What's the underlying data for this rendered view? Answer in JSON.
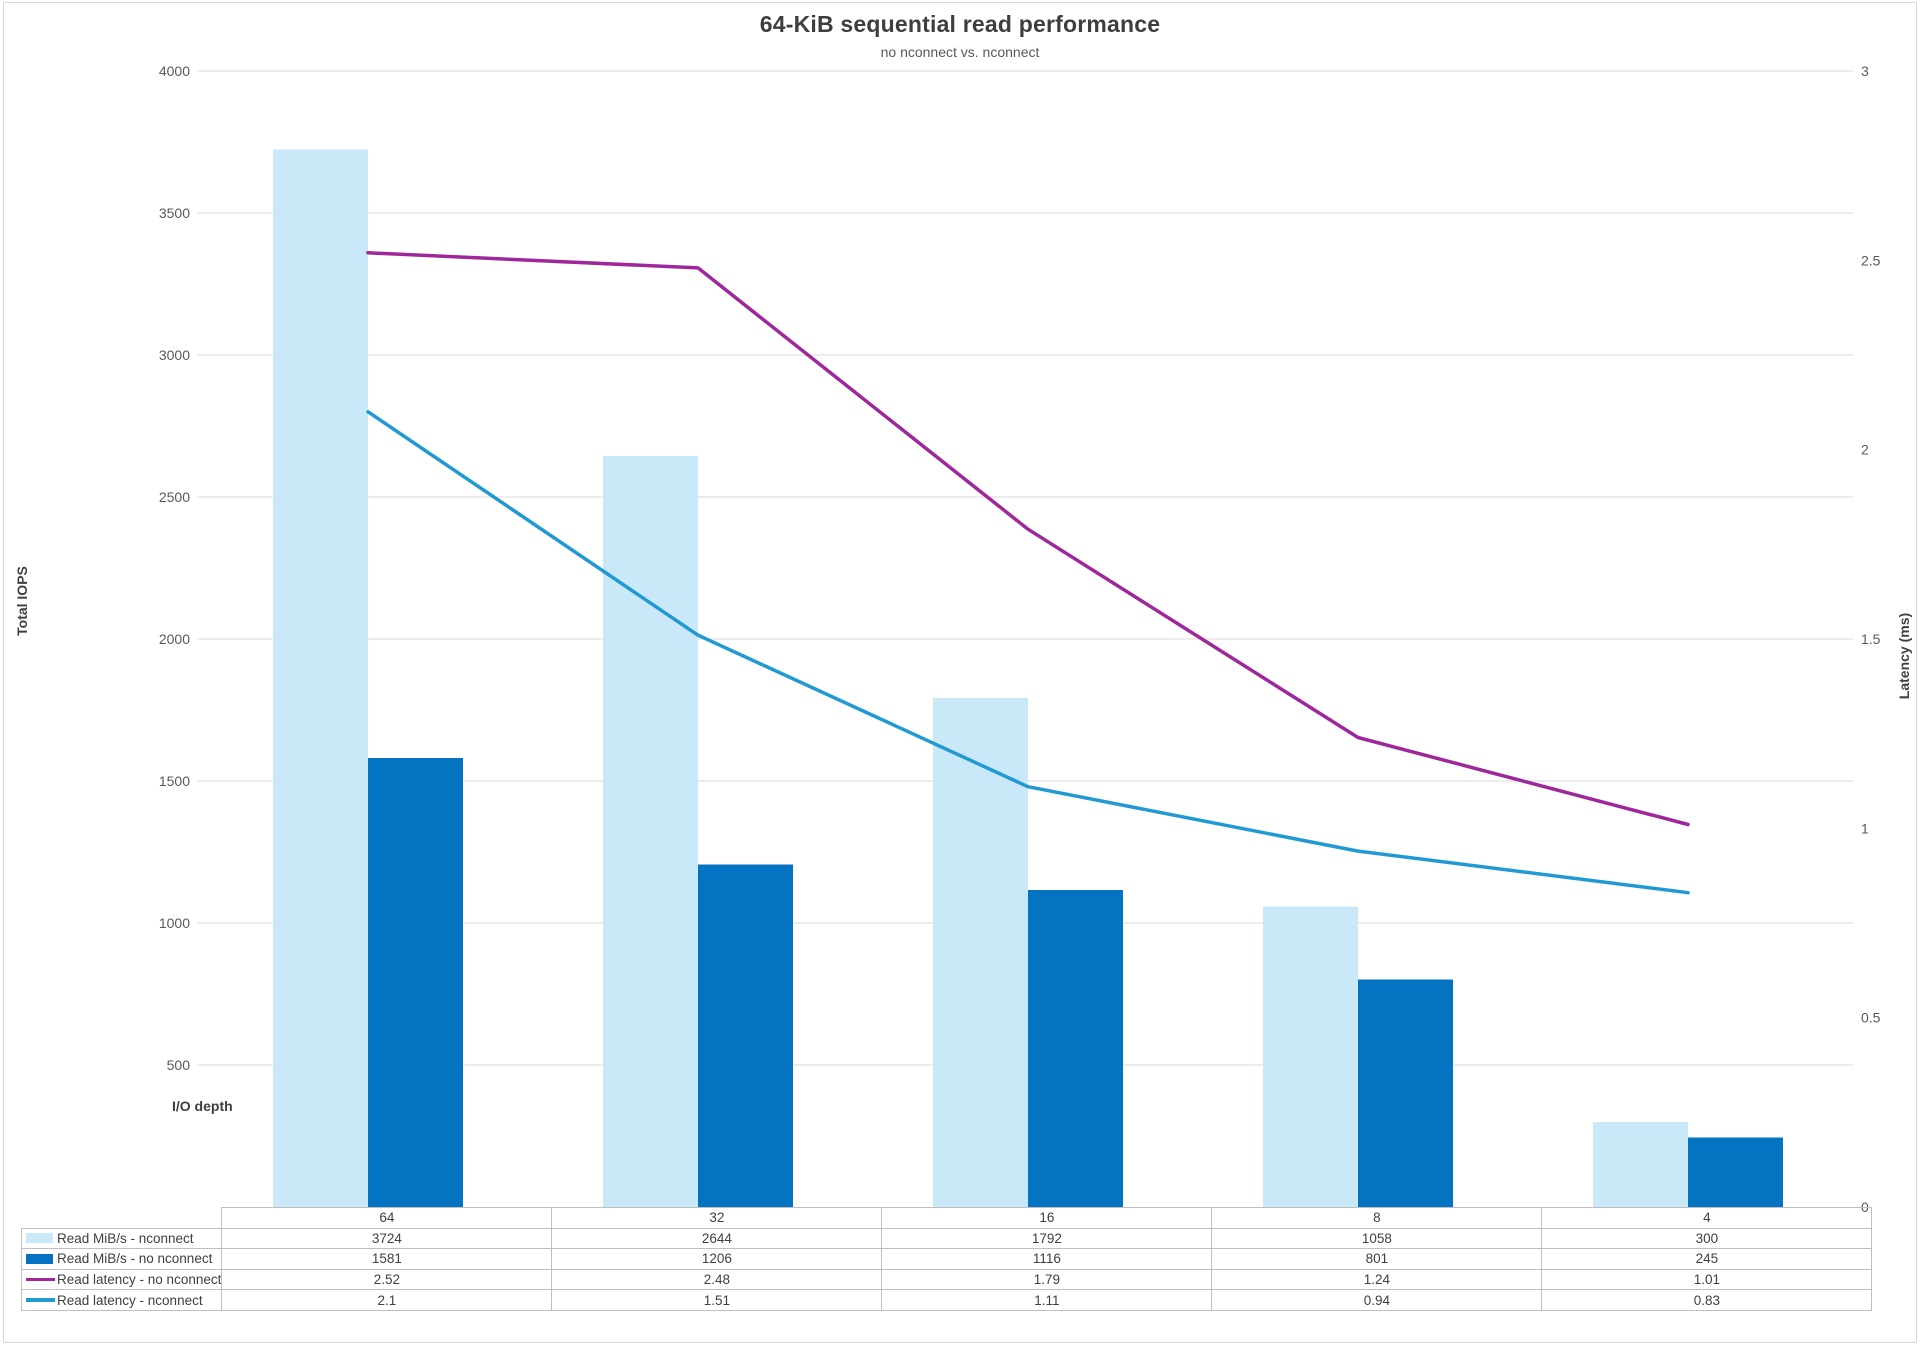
{
  "chart_data": {
    "type": "bar",
    "subtype": "combo-bar-line-dual-axis",
    "title": "64-KiB sequential read performance",
    "subtitle": "no nconnect vs. nconnect",
    "categories": [
      "64",
      "32",
      "16",
      "8",
      "4"
    ],
    "series": [
      {
        "name": "Read MiB/s - nconnect",
        "type": "bar",
        "axis": "left",
        "color": "#CAE9F8",
        "values": [
          3724,
          2644,
          1792,
          1058,
          300
        ]
      },
      {
        "name": "Read MiB/s - no nconnect",
        "type": "bar",
        "axis": "left",
        "color": "#0473C1",
        "values": [
          1581,
          1206,
          1116,
          801,
          245
        ]
      },
      {
        "name": "Read latency - no nconnect",
        "type": "line",
        "axis": "right",
        "color": "#9E289B",
        "values": [
          2.52,
          2.48,
          1.79,
          1.24,
          1.01
        ]
      },
      {
        "name": "Read latency - nconnect",
        "type": "line",
        "axis": "right",
        "color": "#2199D3",
        "values": [
          2.1,
          1.51,
          1.11,
          0.94,
          0.83
        ]
      }
    ],
    "left_axis": {
      "title": "Total IOPS",
      "min": 0,
      "max": 4000,
      "step": 500,
      "labels_shown": [
        "500",
        "1000",
        "1500",
        "2000",
        "2500",
        "3000",
        "3500",
        "4000"
      ]
    },
    "right_axis": {
      "title": "Latency (ms)",
      "min": 0,
      "max": 3,
      "step": 0.5,
      "labels_shown": [
        "0",
        "0.5",
        "1",
        "1.5",
        "2",
        "2.5",
        "3"
      ]
    },
    "x_axis_title": "I/O depth",
    "grid": true,
    "legend_position": "data-table-left-column"
  },
  "colors": {
    "grid": "#D9D9D9",
    "frame_border": "#D9D9D9",
    "table_border": "#BFBFBF",
    "tick_text": "#595959",
    "table_text": "#404040",
    "title_text": "#3E3E3E"
  }
}
